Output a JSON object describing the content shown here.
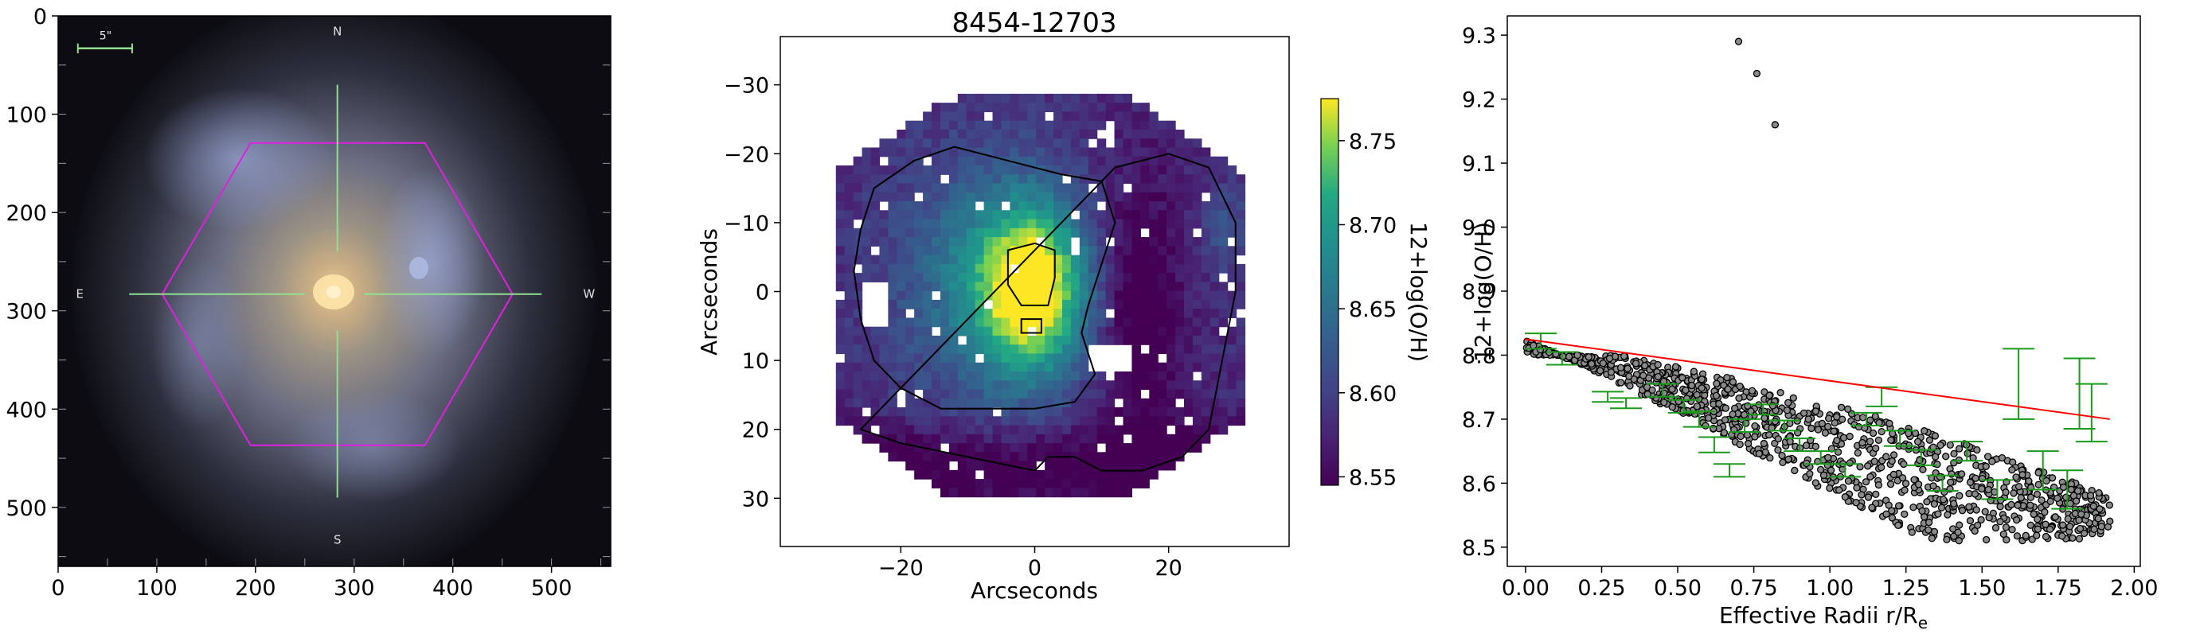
{
  "chart_data": [
    {
      "type": "image",
      "panel": "sdss-image",
      "xlim": [
        0,
        560
      ],
      "ylim": [
        560,
        0
      ],
      "xticks": [
        0,
        100,
        200,
        300,
        400,
        500
      ],
      "yticks": [
        0,
        100,
        200,
        300,
        400,
        500
      ],
      "scale_bar_label": "5\"",
      "compass": {
        "north": "N",
        "south": "S",
        "east": "E",
        "west": "W"
      },
      "hexagon_color": "#e020e0",
      "crosshair_color": "#90e090",
      "center": [
        283,
        283
      ]
    },
    {
      "type": "heatmap",
      "panel": "metallicity-map",
      "title": "8454-12703",
      "xlabel": "Arcseconds",
      "ylabel": "Arcseconds",
      "xlim": [
        -38,
        38
      ],
      "ylim": [
        -37,
        37
      ],
      "xticks": [
        -20,
        0,
        20
      ],
      "yticks": [
        -30,
        -20,
        -10,
        0,
        10,
        20,
        30
      ],
      "colorbar": {
        "label": "12+log(O/H)",
        "min": 8.545,
        "max": 8.775,
        "ticks": [
          8.55,
          8.6,
          8.65,
          8.7,
          8.75
        ],
        "colormap": "viridis"
      }
    },
    {
      "type": "scatter",
      "panel": "gradient",
      "xlabel": "Effective Radii r/R",
      "xlabel_sub": "e",
      "ylabel": "12+log(O/H)",
      "xlim": [
        -0.06,
        2.02
      ],
      "ylim": [
        8.47,
        9.33
      ],
      "xticks": [
        0.0,
        0.25,
        0.5,
        0.75,
        1.0,
        1.25,
        1.5,
        1.75,
        2.0
      ],
      "yticks": [
        8.5,
        8.6,
        8.7,
        8.8,
        8.9,
        9.0,
        9.1,
        9.2,
        9.3
      ],
      "outliers": [
        [
          0.7,
          9.29
        ],
        [
          0.76,
          9.24
        ],
        [
          0.82,
          9.16
        ]
      ],
      "fit_line": {
        "x": [
          0.0,
          1.92
        ],
        "y": [
          8.825,
          8.7
        ],
        "color": "#ff0000"
      },
      "binned": [
        {
          "x": 0.05,
          "y": 8.822,
          "err": 0.012
        },
        {
          "x": 0.12,
          "y": 8.795,
          "err": 0.01
        },
        {
          "x": 0.27,
          "y": 8.735,
          "err": 0.008
        },
        {
          "x": 0.33,
          "y": 8.725,
          "err": 0.008
        },
        {
          "x": 0.45,
          "y": 8.745,
          "err": 0.01
        },
        {
          "x": 0.52,
          "y": 8.72,
          "err": 0.01
        },
        {
          "x": 0.57,
          "y": 8.7,
          "err": 0.012
        },
        {
          "x": 0.62,
          "y": 8.66,
          "err": 0.012
        },
        {
          "x": 0.67,
          "y": 8.62,
          "err": 0.01
        },
        {
          "x": 0.72,
          "y": 8.69,
          "err": 0.01
        },
        {
          "x": 0.78,
          "y": 8.715,
          "err": 0.008
        },
        {
          "x": 0.85,
          "y": 8.69,
          "err": 0.008
        },
        {
          "x": 0.9,
          "y": 8.66,
          "err": 0.01
        },
        {
          "x": 0.97,
          "y": 8.64,
          "err": 0.01
        },
        {
          "x": 1.05,
          "y": 8.62,
          "err": 0.01
        },
        {
          "x": 1.12,
          "y": 8.7,
          "err": 0.01
        },
        {
          "x": 1.17,
          "y": 8.735,
          "err": 0.015
        },
        {
          "x": 1.23,
          "y": 8.67,
          "err": 0.012
        },
        {
          "x": 1.3,
          "y": 8.64,
          "err": 0.012
        },
        {
          "x": 1.37,
          "y": 8.6,
          "err": 0.012
        },
        {
          "x": 1.45,
          "y": 8.65,
          "err": 0.015
        },
        {
          "x": 1.55,
          "y": 8.59,
          "err": 0.015
        },
        {
          "x": 1.62,
          "y": 8.755,
          "err": 0.055
        },
        {
          "x": 1.7,
          "y": 8.62,
          "err": 0.03
        },
        {
          "x": 1.78,
          "y": 8.59,
          "err": 0.03
        },
        {
          "x": 1.82,
          "y": 8.74,
          "err": 0.055
        },
        {
          "x": 1.86,
          "y": 8.71,
          "err": 0.045
        }
      ],
      "marker_edge": "#000000",
      "marker_face": "#8a8a8a",
      "bin_color": "#1a9a1a"
    }
  ]
}
